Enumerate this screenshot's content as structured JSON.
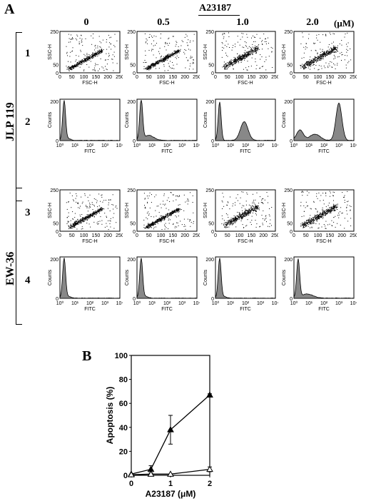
{
  "figure": {
    "panel_a_label": "A",
    "panel_b_label": "B",
    "treatment_label": "A23187",
    "unit_label": "(μM)",
    "concentrations": [
      "0",
      "0.5",
      "1.0",
      "2.0"
    ],
    "cell_lines": [
      {
        "name": "JLP 119",
        "rows": [
          "1",
          "2"
        ]
      },
      {
        "name": "EW-36",
        "rows": [
          "3",
          "4"
        ]
      }
    ],
    "scatter_axis": {
      "xlabel": "FSC-H",
      "ylabel": "SSC-H",
      "xticks": [
        "0",
        "50",
        "100",
        "150",
        "200",
        "250"
      ],
      "yticks": [
        "0",
        "50",
        "250"
      ]
    },
    "histogram_axis": {
      "xlabel": "FITC",
      "ylabel": "Counts",
      "xticks": [
        "10⁰",
        "10¹",
        "10²",
        "10³",
        "10⁴"
      ],
      "yticks": [
        "0",
        "200"
      ]
    },
    "histograms": {
      "row2": [
        {
          "shape": "single"
        },
        {
          "shape": "single_tail"
        },
        {
          "shape": "bimodal_mid"
        },
        {
          "shape": "bimodal_high"
        }
      ],
      "row4": [
        {
          "shape": "single"
        },
        {
          "shape": "single"
        },
        {
          "shape": "single"
        },
        {
          "shape": "single_tail_small"
        }
      ]
    }
  },
  "chart_data": {
    "type": "line",
    "xlabel": "A23187 (μM)",
    "ylabel": "Apoptosis (%)",
    "xlim": [
      0,
      2
    ],
    "ylim": [
      0,
      100
    ],
    "xticks": [
      "0",
      "1",
      "2"
    ],
    "yticks": [
      "0",
      "20",
      "40",
      "60",
      "80",
      "100"
    ],
    "x": [
      0,
      0.5,
      1,
      2
    ],
    "series": [
      {
        "marker": "filled-triangle",
        "values": [
          1,
          5,
          38,
          67
        ],
        "errors": [
          0.5,
          3,
          12,
          1
        ]
      },
      {
        "marker": "open-triangle",
        "values": [
          0.5,
          1,
          1,
          5
        ],
        "errors": [
          0.3,
          0.5,
          0.5,
          2
        ]
      }
    ]
  }
}
